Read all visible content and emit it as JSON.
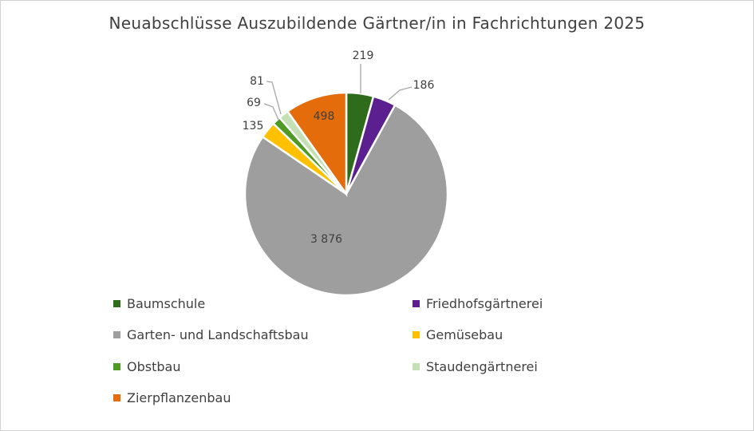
{
  "chart_data": {
    "type": "pie",
    "title": "Neuabschlüsse Auszubildende Gärtner/in in Fachrichtungen 2025",
    "categories": [
      "Baumschule",
      "Friedhofsgärtnerei",
      "Garten- und Landschaftsbau",
      "Gemüsebau",
      "Obstbau",
      "Staudengärtnerei",
      "Zierpflanzenbau"
    ],
    "values": [
      219,
      186,
      3876,
      135,
      69,
      81,
      498
    ],
    "data_labels": [
      "219",
      "186",
      "3 876",
      "135",
      "69",
      "81",
      "498"
    ],
    "colors": [
      "#2e6b1a",
      "#5b1f8f",
      "#9e9e9e",
      "#ffc000",
      "#4e9a24",
      "#c5e0b4",
      "#e46c0a"
    ],
    "legend": "bottom",
    "start_angle": "12 o'clock, clockwise"
  }
}
